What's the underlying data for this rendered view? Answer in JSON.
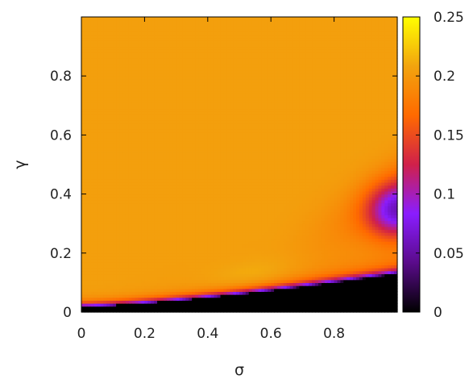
{
  "chart_data": {
    "type": "heatmap",
    "title": "",
    "xlabel": "σ",
    "ylabel": "γ",
    "xlim": [
      0,
      1
    ],
    "ylim": [
      0,
      1
    ],
    "x_ticks": [
      {
        "value": 0,
        "label": "0"
      },
      {
        "value": 0.2,
        "label": "0.2"
      },
      {
        "value": 0.4,
        "label": "0.4"
      },
      {
        "value": 0.6,
        "label": "0.6"
      },
      {
        "value": 0.8,
        "label": "0.8"
      }
    ],
    "y_ticks": [
      {
        "value": 0,
        "label": "0"
      },
      {
        "value": 0.2,
        "label": "0.2"
      },
      {
        "value": 0.4,
        "label": "0.4"
      },
      {
        "value": 0.6,
        "label": "0.6"
      },
      {
        "value": 0.8,
        "label": "0.8"
      }
    ],
    "colorbar": {
      "range": [
        0,
        0.25
      ],
      "ticks": [
        {
          "value": 0,
          "label": "0"
        },
        {
          "value": 0.05,
          "label": "0.05"
        },
        {
          "value": 0.1,
          "label": "0.1"
        },
        {
          "value": 0.15,
          "label": "0.15"
        },
        {
          "value": 0.2,
          "label": "0.2"
        },
        {
          "value": 0.25,
          "label": "0.25"
        }
      ],
      "colormap": [
        "#000000",
        "#5a0b8a",
        "#8a1dff",
        "#d0204a",
        "#ff6a00",
        "#f2a40e",
        "#ffff00"
      ]
    },
    "regions": [
      {
        "description": "plateau",
        "value": 0.205
      },
      {
        "description": "zero region below boundary γ≈0.02+0.11σ^1.4",
        "value": 0
      },
      {
        "description": "purple pocket near σ≈0.97, γ≈0.35",
        "value": 0.08
      }
    ]
  }
}
